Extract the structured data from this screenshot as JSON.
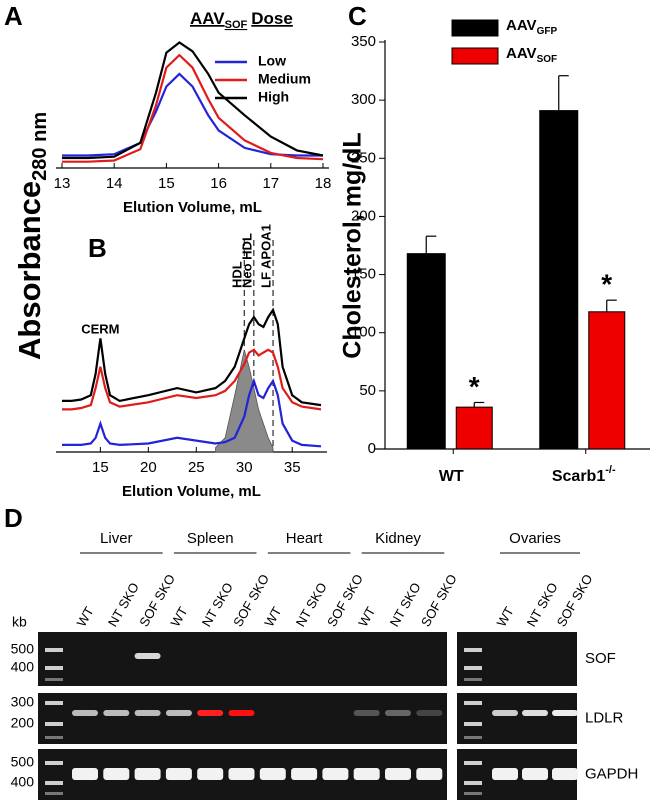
{
  "chart_data": [
    {
      "panel": "A",
      "type": "line",
      "title_parts": [
        "AAV",
        "SOF",
        "Dose"
      ],
      "ylabel": "Absorbance",
      "ylabel_sub": "280 nm",
      "xlabel": "Elution Volume, mL",
      "x": [
        13,
        13.5,
        14,
        14.5,
        14.8,
        15,
        15.25,
        15.5,
        15.8,
        16,
        16.5,
        17,
        17.5,
        18
      ],
      "xlim": [
        13,
        18
      ],
      "xticks": [
        13,
        14,
        15,
        16,
        17,
        18
      ],
      "ylim": [
        0,
        1.1
      ],
      "legend": "upper right",
      "series": [
        {
          "name": "Low",
          "color": "#2323d8",
          "values": [
            0.1,
            0.1,
            0.11,
            0.2,
            0.45,
            0.65,
            0.75,
            0.65,
            0.42,
            0.3,
            0.16,
            0.11,
            0.1,
            0.1
          ]
        },
        {
          "name": "Medium",
          "color": "#e01b1b",
          "values": [
            0.05,
            0.05,
            0.06,
            0.15,
            0.5,
            0.8,
            0.9,
            0.8,
            0.55,
            0.4,
            0.22,
            0.12,
            0.08,
            0.07
          ]
        },
        {
          "name": "High",
          "color": "#000000",
          "values": [
            0.08,
            0.08,
            0.09,
            0.2,
            0.6,
            0.92,
            1.0,
            0.93,
            0.75,
            0.6,
            0.42,
            0.25,
            0.14,
            0.1
          ]
        }
      ]
    },
    {
      "panel": "B",
      "type": "line",
      "xlabel": "Elution Volume, mL",
      "x": [
        11,
        12,
        13,
        14,
        14.5,
        15,
        15.5,
        16,
        17,
        20,
        23,
        25,
        27,
        28,
        29,
        30,
        30.5,
        31,
        31.5,
        32,
        32.5,
        33,
        33.5,
        34,
        35,
        36,
        38
      ],
      "xlim": [
        11,
        38
      ],
      "xticks": [
        15,
        20,
        25,
        30,
        35
      ],
      "ylim": [
        0,
        1
      ],
      "annotations": [
        {
          "x": 15,
          "text": "CERM"
        }
      ],
      "peak_labels": [
        {
          "x": 30,
          "text": "HDL"
        },
        {
          "x": 31,
          "text": "Neo HDL"
        },
        {
          "x": 33,
          "text": "LF APOA1"
        }
      ],
      "series": [
        {
          "color": "#8a8a8a",
          "fill": true,
          "values": [
            null,
            null,
            null,
            null,
            null,
            null,
            null,
            null,
            null,
            null,
            null,
            null,
            0.03,
            0.1,
            0.4,
            0.72,
            0.6,
            0.45,
            0.3,
            0.2,
            0.1,
            0.03,
            null,
            null,
            null,
            null,
            null
          ]
        },
        {
          "color": "#000000",
          "values": [
            0.36,
            0.36,
            0.37,
            0.4,
            0.55,
            0.8,
            0.55,
            0.4,
            0.36,
            0.4,
            0.45,
            0.42,
            0.45,
            0.5,
            0.6,
            0.8,
            0.9,
            0.95,
            0.9,
            0.88,
            0.95,
            1.0,
            0.9,
            0.6,
            0.4,
            0.35,
            0.33
          ]
        },
        {
          "color": "#e01b1b",
          "values": [
            0.3,
            0.3,
            0.31,
            0.33,
            0.45,
            0.6,
            0.45,
            0.35,
            0.32,
            0.35,
            0.4,
            0.38,
            0.4,
            0.43,
            0.5,
            0.62,
            0.7,
            0.72,
            0.68,
            0.7,
            0.72,
            0.7,
            0.6,
            0.45,
            0.35,
            0.32,
            0.3
          ]
        },
        {
          "color": "#2323d8",
          "values": [
            0.05,
            0.05,
            0.05,
            0.06,
            0.1,
            0.2,
            0.1,
            0.06,
            0.05,
            0.06,
            0.1,
            0.08,
            0.06,
            0.07,
            0.1,
            0.25,
            0.4,
            0.5,
            0.4,
            0.38,
            0.45,
            0.5,
            0.4,
            0.2,
            0.08,
            0.05,
            0.04
          ]
        }
      ]
    },
    {
      "panel": "C",
      "type": "bar",
      "ylabel": "Cholesterol, mg/dL",
      "categories": [
        {
          "text": "WT"
        },
        {
          "text": "Scarb1",
          "sup": "-/-"
        }
      ],
      "ylim": [
        0,
        350
      ],
      "yticks": [
        0,
        50,
        100,
        150,
        200,
        250,
        300,
        350
      ],
      "legend": "upper left",
      "series": [
        {
          "name": "AAV",
          "name_sub": "GFP",
          "color": "#000000",
          "values": [
            168,
            291
          ],
          "errors": [
            15,
            30
          ]
        },
        {
          "name": "AAV",
          "name_sub": "SOF",
          "color": "#ee0000",
          "values": [
            36,
            118
          ],
          "errors": [
            4,
            10
          ],
          "significance": [
            "*",
            "*"
          ]
        }
      ]
    }
  ],
  "gel": {
    "panel": "D",
    "size_unit": "kb",
    "groups": [
      {
        "name": "Liver",
        "lanes": [
          "WT",
          "NT SKO",
          "SOF SKO"
        ]
      },
      {
        "name": "Spleen",
        "lanes": [
          "WT",
          "NT SKO",
          "SOF SKO"
        ]
      },
      {
        "name": "Heart",
        "lanes": [
          "WT",
          "NT SKO",
          "SOF SKO"
        ]
      },
      {
        "name": "Kidney",
        "lanes": [
          "WT",
          "NT SKO",
          "SOF SKO"
        ]
      },
      {
        "name": "Ovaries",
        "lanes": [
          "WT",
          "NT SKO",
          "SOF SKO"
        ]
      }
    ],
    "rows": [
      {
        "name": "SOF",
        "markers": [
          500,
          400
        ]
      },
      {
        "name": "LDLR",
        "markers": [
          300,
          200
        ]
      },
      {
        "name": "GAPDH",
        "markers": [
          500,
          400
        ]
      }
    ]
  }
}
